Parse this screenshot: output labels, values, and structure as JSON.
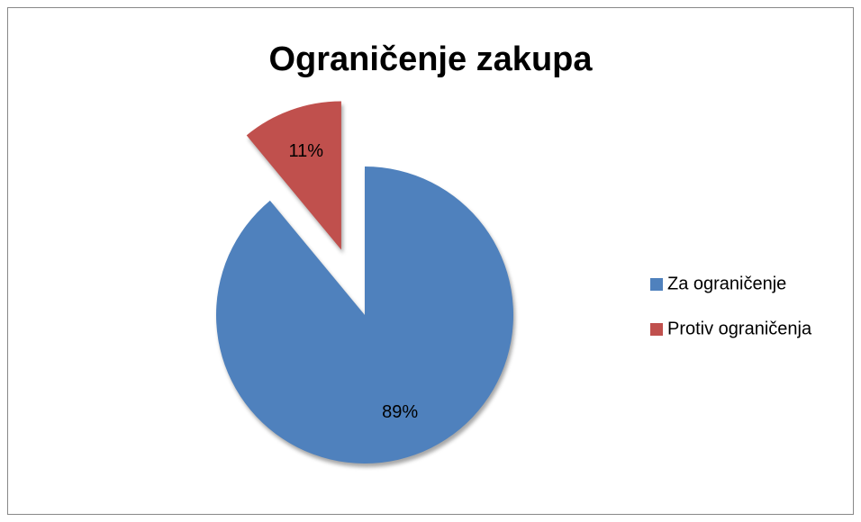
{
  "chart_data": {
    "type": "pie",
    "title": "Ograničenje zakupa",
    "categories": [
      "Za ograničenje",
      "Protiv ograničenja"
    ],
    "values": [
      89,
      11
    ],
    "value_labels": [
      "89%",
      "11%"
    ],
    "colors": [
      "#4f81bd",
      "#c0504d"
    ],
    "exploded": [
      false,
      true
    ],
    "legend": "right"
  }
}
